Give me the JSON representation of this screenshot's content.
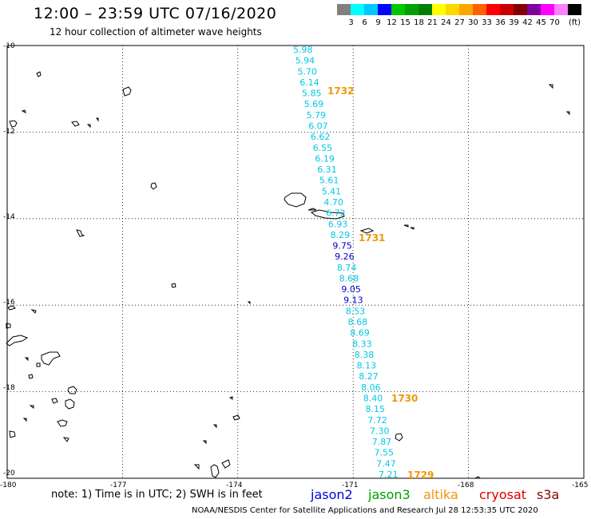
{
  "header": {
    "title": "12:00 – 23:59 UTC 07/16/2020",
    "subtitle": "12 hour collection of altimeter wave heights"
  },
  "legend": {
    "colors": [
      "#808080",
      "#00ffff",
      "#00c8ff",
      "#0000ff",
      "#00c800",
      "#00a000",
      "#008000",
      "#ffff00",
      "#ffd700",
      "#ffa500",
      "#ff6000",
      "#ff0000",
      "#c80000",
      "#800000",
      "#8000a0",
      "#ff00ff",
      "#ff80ff",
      "#000000"
    ],
    "labels": [
      "3",
      "6",
      "9",
      "12",
      "15",
      "18",
      "21",
      "24",
      "27",
      "30",
      "33",
      "36",
      "39",
      "42",
      "45",
      "70"
    ],
    "unit": "(ft)"
  },
  "map": {
    "lat_labels": [
      "-10",
      "-12",
      "-14",
      "-16",
      "-18",
      "-20"
    ],
    "lon_labels": [
      "-180",
      "-177",
      "-174",
      "-171",
      "-168",
      "-165"
    ],
    "lat_range": [
      -20,
      -10
    ],
    "lon_range": [
      -180,
      -165
    ],
    "grid": "dotted",
    "track_colors": {
      "cyan": "#00c8e6",
      "blue": "#0000c8",
      "time": "#f0960a"
    },
    "waves": [
      {
        "t": "5.98",
        "c": "cyan"
      },
      {
        "t": "5.94",
        "c": "cyan"
      },
      {
        "t": "5.70",
        "c": "cyan"
      },
      {
        "t": "6.14",
        "c": "cyan"
      },
      {
        "t": "5.85",
        "c": "cyan"
      },
      {
        "t": "5.69",
        "c": "cyan"
      },
      {
        "t": "5.79",
        "c": "cyan"
      },
      {
        "t": "6.07",
        "c": "cyan"
      },
      {
        "t": "6.62",
        "c": "cyan"
      },
      {
        "t": "6.55",
        "c": "cyan"
      },
      {
        "t": "6.19",
        "c": "cyan"
      },
      {
        "t": "6.31",
        "c": "cyan"
      },
      {
        "t": "5.61",
        "c": "cyan"
      },
      {
        "t": "5.41",
        "c": "cyan"
      },
      {
        "t": "4.70",
        "c": "cyan"
      },
      {
        "t": "6.72",
        "c": "cyan"
      },
      {
        "t": "6.93",
        "c": "cyan"
      },
      {
        "t": "8.29",
        "c": "cyan"
      },
      {
        "t": "9.75",
        "c": "blue"
      },
      {
        "t": "9.26",
        "c": "blue"
      },
      {
        "t": "8.74",
        "c": "cyan"
      },
      {
        "t": "8.68",
        "c": "cyan"
      },
      {
        "t": "9.05",
        "c": "blue"
      },
      {
        "t": "9.13",
        "c": "blue"
      },
      {
        "t": "8.53",
        "c": "cyan"
      },
      {
        "t": "8.68",
        "c": "cyan"
      },
      {
        "t": "8.69",
        "c": "cyan"
      },
      {
        "t": "8.33",
        "c": "cyan"
      },
      {
        "t": "8.38",
        "c": "cyan"
      },
      {
        "t": "8.13",
        "c": "cyan"
      },
      {
        "t": "8.27",
        "c": "cyan"
      },
      {
        "t": "8.06",
        "c": "cyan"
      },
      {
        "t": "8.40",
        "c": "cyan"
      },
      {
        "t": "8.15",
        "c": "cyan"
      },
      {
        "t": "7.72",
        "c": "cyan"
      },
      {
        "t": "7.30",
        "c": "cyan"
      },
      {
        "t": "7.87",
        "c": "cyan"
      },
      {
        "t": "7.55",
        "c": "cyan"
      },
      {
        "t": "7.47",
        "c": "cyan"
      },
      {
        "t": "7.21",
        "c": "cyan"
      }
    ],
    "time_labels": [
      "1732",
      "1731",
      "1730",
      "1729"
    ]
  },
  "footer": {
    "note": "note: 1) Time is in UTC; 2) SWH is in feet",
    "satellites": [
      {
        "name": "jason2",
        "color": "#0000dc"
      },
      {
        "name": "jason3",
        "color": "#00a000"
      },
      {
        "name": "altika",
        "color": "#f0960a"
      },
      {
        "name": "cryosat",
        "color": "#dc0000"
      },
      {
        "name": "s3a",
        "color": "#8b0000"
      }
    ],
    "credit": "NOAA/NESDIS Center for Satellite Applications and Research     Jul 28 12:53:35 UTC 2020"
  }
}
